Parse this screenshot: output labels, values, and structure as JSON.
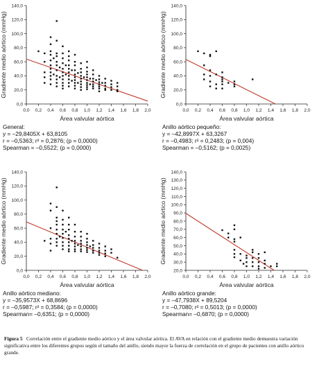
{
  "chart_data": [
    {
      "type": "scatter",
      "ylabel": "Gradiente medio aórtico (mmHg)",
      "xlabel": "Área valvular aórtica",
      "xlim": [
        0,
        2.0
      ],
      "ylim": [
        0,
        140
      ],
      "xticks": [
        "0,0",
        "0,2",
        "0,4",
        "0,6",
        "0,8",
        "1,0",
        "1,2",
        "1,4",
        "1,6",
        "1,8",
        "2,0"
      ],
      "yticks": [
        "0,0",
        "20,0",
        "40,0",
        "60,0",
        "80,0",
        "100,0",
        "120,0",
        "140,0"
      ],
      "regression": {
        "slope": -29.8405,
        "intercept": 63.8105
      },
      "stats": [
        "General:",
        "y = –29,8405X + 63,8105",
        "r = –0,5363; r² = 0,2876; (p = 0,0000)",
        "Spearman = –0,5522; (p = 0,0000)"
      ],
      "points": [
        [
          0.2,
          75
        ],
        [
          0.3,
          72
        ],
        [
          0.3,
          60
        ],
        [
          0.3,
          45
        ],
        [
          0.3,
          38
        ],
        [
          0.3,
          30
        ],
        [
          0.4,
          95
        ],
        [
          0.4,
          85
        ],
        [
          0.4,
          75
        ],
        [
          0.4,
          70
        ],
        [
          0.4,
          62
        ],
        [
          0.4,
          55
        ],
        [
          0.4,
          50
        ],
        [
          0.4,
          45
        ],
        [
          0.4,
          40
        ],
        [
          0.4,
          35
        ],
        [
          0.4,
          28
        ],
        [
          0.45,
          65
        ],
        [
          0.45,
          42
        ],
        [
          0.5,
          118
        ],
        [
          0.5,
          90
        ],
        [
          0.5,
          72
        ],
        [
          0.5,
          68
        ],
        [
          0.5,
          60
        ],
        [
          0.5,
          55
        ],
        [
          0.5,
          48
        ],
        [
          0.5,
          40
        ],
        [
          0.5,
          35
        ],
        [
          0.5,
          30
        ],
        [
          0.5,
          25
        ],
        [
          0.55,
          52
        ],
        [
          0.55,
          38
        ],
        [
          0.6,
          82
        ],
        [
          0.6,
          72
        ],
        [
          0.6,
          65
        ],
        [
          0.6,
          58
        ],
        [
          0.6,
          50
        ],
        [
          0.6,
          45
        ],
        [
          0.6,
          40
        ],
        [
          0.6,
          35
        ],
        [
          0.6,
          30
        ],
        [
          0.6,
          26
        ],
        [
          0.6,
          22
        ],
        [
          0.65,
          55
        ],
        [
          0.65,
          42
        ],
        [
          0.7,
          75
        ],
        [
          0.7,
          68
        ],
        [
          0.7,
          62
        ],
        [
          0.7,
          55
        ],
        [
          0.7,
          50
        ],
        [
          0.7,
          45
        ],
        [
          0.7,
          40
        ],
        [
          0.7,
          35
        ],
        [
          0.7,
          30
        ],
        [
          0.7,
          25
        ],
        [
          0.75,
          48
        ],
        [
          0.75,
          33
        ],
        [
          0.8,
          70
        ],
        [
          0.8,
          60
        ],
        [
          0.8,
          55
        ],
        [
          0.8,
          48
        ],
        [
          0.8,
          42
        ],
        [
          0.8,
          38
        ],
        [
          0.8,
          34
        ],
        [
          0.8,
          30
        ],
        [
          0.8,
          26
        ],
        [
          0.8,
          22
        ],
        [
          0.85,
          44
        ],
        [
          0.85,
          30
        ],
        [
          0.9,
          58
        ],
        [
          0.9,
          50
        ],
        [
          0.9,
          45
        ],
        [
          0.9,
          40
        ],
        [
          0.9,
          36
        ],
        [
          0.9,
          32
        ],
        [
          0.9,
          28
        ],
        [
          0.9,
          24
        ],
        [
          0.9,
          20
        ],
        [
          0.95,
          38
        ],
        [
          1.0,
          60
        ],
        [
          1.0,
          52
        ],
        [
          1.0,
          46
        ],
        [
          1.0,
          42
        ],
        [
          1.0,
          38
        ],
        [
          1.0,
          34
        ],
        [
          1.0,
          30
        ],
        [
          1.0,
          27
        ],
        [
          1.0,
          24
        ],
        [
          1.0,
          21
        ],
        [
          1.05,
          36
        ],
        [
          1.05,
          28
        ],
        [
          1.1,
          48
        ],
        [
          1.1,
          42
        ],
        [
          1.1,
          36
        ],
        [
          1.1,
          32
        ],
        [
          1.1,
          28
        ],
        [
          1.1,
          25
        ],
        [
          1.1,
          22
        ],
        [
          1.15,
          34
        ],
        [
          1.2,
          40
        ],
        [
          1.2,
          35
        ],
        [
          1.2,
          31
        ],
        [
          1.2,
          28
        ],
        [
          1.2,
          25
        ],
        [
          1.2,
          22
        ],
        [
          1.2,
          18
        ],
        [
          1.25,
          30
        ],
        [
          1.3,
          36
        ],
        [
          1.3,
          30
        ],
        [
          1.3,
          26
        ],
        [
          1.3,
          22
        ],
        [
          1.3,
          20
        ],
        [
          1.4,
          33
        ],
        [
          1.4,
          28
        ],
        [
          1.4,
          24
        ],
        [
          1.4,
          20
        ],
        [
          1.5,
          30
        ],
        [
          1.5,
          25
        ],
        [
          1.5,
          20
        ],
        [
          1.5,
          18
        ]
      ]
    },
    {
      "type": "scatter",
      "ylabel": "Gradiente medio aórtico (mmHg)",
      "xlabel": "Área valvular aórtica",
      "xlim": [
        0,
        2.0
      ],
      "ylim": [
        0,
        140
      ],
      "xticks": [
        "0,0",
        "0,2",
        "0,4",
        "0,6",
        "0,8",
        "1,0",
        "1,2",
        "1,4",
        "1,6",
        "1,8",
        "2,0"
      ],
      "yticks": [
        "0,0",
        "20,0",
        "40,0",
        "60,0",
        "80,0",
        "100,0",
        "120,0",
        "140,0"
      ],
      "regression": {
        "slope": -42.8997,
        "intercept": 63.3267
      },
      "stats": [
        "Anillo aórtico pequeño:",
        "y = –42,8997X + 63,3267",
        "r = –0,4983; r² = 0,2483; (p = 0,004)",
        "Spearman = –0,5162; (p = 0,0025)"
      ],
      "points": [
        [
          0.2,
          75
        ],
        [
          0.3,
          72
        ],
        [
          0.3,
          55
        ],
        [
          0.3,
          42
        ],
        [
          0.3,
          35
        ],
        [
          0.4,
          70
        ],
        [
          0.4,
          68
        ],
        [
          0.4,
          48
        ],
        [
          0.4,
          40
        ],
        [
          0.4,
          32
        ],
        [
          0.4,
          25
        ],
        [
          0.5,
          75
        ],
        [
          0.5,
          42
        ],
        [
          0.5,
          28
        ],
        [
          0.5,
          22
        ],
        [
          0.6,
          45
        ],
        [
          0.6,
          38
        ],
        [
          0.6,
          35
        ],
        [
          0.6,
          32
        ],
        [
          0.6,
          28
        ],
        [
          0.6,
          22
        ],
        [
          0.7,
          30
        ],
        [
          0.8,
          32
        ],
        [
          0.8,
          28
        ],
        [
          0.8,
          25
        ],
        [
          1.1,
          35
        ]
      ]
    },
    {
      "type": "scatter",
      "ylabel": "Gradiente medio aórtico (mmHg)",
      "xlabel": "Área valvular aórtica",
      "xlim": [
        0,
        2.0
      ],
      "ylim": [
        0,
        140
      ],
      "xticks": [
        "0,0",
        "0,2",
        "0,4",
        "0,6",
        "0,8",
        "1,0",
        "1,2",
        "1,4",
        "1,6",
        "1,8",
        "2,0"
      ],
      "yticks": [
        "0,0",
        "20,0",
        "40,0",
        "60,0",
        "80,0",
        "100,0",
        "120,0",
        "140,0"
      ],
      "regression": {
        "slope": -35.9573,
        "intercept": 68.8696
      },
      "stats": [
        "Anillo aórtico mediano:",
        "y = –35,9573X + 68,8696",
        "r = –0,5987; r² = 0,3584; (p = 0,0000)",
        "Spearman= –0,6351; (p = 0,0000)"
      ],
      "points": [
        [
          0.3,
          42
        ],
        [
          0.4,
          95
        ],
        [
          0.4,
          85
        ],
        [
          0.4,
          60
        ],
        [
          0.4,
          45
        ],
        [
          0.4,
          38
        ],
        [
          0.4,
          28
        ],
        [
          0.5,
          118
        ],
        [
          0.5,
          90
        ],
        [
          0.5,
          75
        ],
        [
          0.5,
          70
        ],
        [
          0.5,
          65
        ],
        [
          0.5,
          58
        ],
        [
          0.5,
          52
        ],
        [
          0.5,
          45
        ],
        [
          0.5,
          40
        ],
        [
          0.5,
          35
        ],
        [
          0.55,
          48
        ],
        [
          0.6,
          85
        ],
        [
          0.6,
          72
        ],
        [
          0.6,
          65
        ],
        [
          0.6,
          58
        ],
        [
          0.6,
          52
        ],
        [
          0.6,
          46
        ],
        [
          0.6,
          40
        ],
        [
          0.6,
          35
        ],
        [
          0.6,
          30
        ],
        [
          0.65,
          55
        ],
        [
          0.7,
          75
        ],
        [
          0.7,
          65
        ],
        [
          0.7,
          58
        ],
        [
          0.7,
          50
        ],
        [
          0.7,
          45
        ],
        [
          0.7,
          40
        ],
        [
          0.7,
          35
        ],
        [
          0.7,
          30
        ],
        [
          0.7,
          27
        ],
        [
          0.75,
          42
        ],
        [
          0.8,
          65
        ],
        [
          0.8,
          55
        ],
        [
          0.8,
          48
        ],
        [
          0.8,
          42
        ],
        [
          0.8,
          38
        ],
        [
          0.8,
          34
        ],
        [
          0.8,
          30
        ],
        [
          0.8,
          27
        ],
        [
          0.85,
          36
        ],
        [
          0.9,
          55
        ],
        [
          0.9,
          48
        ],
        [
          0.9,
          42
        ],
        [
          0.9,
          38
        ],
        [
          0.9,
          34
        ],
        [
          0.9,
          30
        ],
        [
          0.9,
          27
        ],
        [
          1.0,
          52
        ],
        [
          1.0,
          45
        ],
        [
          1.0,
          40
        ],
        [
          1.0,
          36
        ],
        [
          1.0,
          32
        ],
        [
          1.0,
          29
        ],
        [
          1.0,
          26
        ],
        [
          1.05,
          34
        ],
        [
          1.1,
          42
        ],
        [
          1.1,
          36
        ],
        [
          1.1,
          32
        ],
        [
          1.1,
          28
        ],
        [
          1.1,
          25
        ],
        [
          1.2,
          38
        ],
        [
          1.2,
          32
        ],
        [
          1.2,
          28
        ],
        [
          1.2,
          25
        ],
        [
          1.2,
          22
        ],
        [
          1.3,
          34
        ],
        [
          1.3,
          28
        ],
        [
          1.3,
          24
        ],
        [
          1.3,
          20
        ],
        [
          1.4,
          30
        ],
        [
          1.4,
          25
        ],
        [
          1.5,
          18
        ]
      ]
    },
    {
      "type": "scatter",
      "ylabel": "Gradiente medio aórtico (mmHg)",
      "xlabel": "Área valvular aórtica",
      "xlim": [
        0,
        2.0
      ],
      "ylim": [
        20,
        140
      ],
      "xticks": [
        "0,0",
        "0,2",
        "0,4",
        "0,6",
        "0,8",
        "1,0",
        "1,2",
        "1,4",
        "1,6",
        "1,8",
        "2,0"
      ],
      "yticks": [
        "20,0",
        "30,0",
        "40,0",
        "50,0",
        "60,0",
        "70,0",
        "80,0",
        "90,0",
        "100,0",
        "110,0",
        "120,0",
        "130,0",
        "140,0"
      ],
      "regression": {
        "slope": -47.7938,
        "intercept": 89.5204
      },
      "stats": [
        "Anillo aórtico grande:",
        "y = –47,7938X + 89,5204",
        "r = –0,7080; r² = 0,5013; (p = 0,0000)",
        "Spearman= –0,6870; (p = 0,0000)"
      ],
      "points": [
        [
          0.6,
          69
        ],
        [
          0.7,
          65
        ],
        [
          0.7,
          60
        ],
        [
          0.8,
          75
        ],
        [
          0.8,
          70
        ],
        [
          0.8,
          58
        ],
        [
          0.8,
          55
        ],
        [
          0.8,
          45
        ],
        [
          0.8,
          40
        ],
        [
          0.8,
          36
        ],
        [
          0.9,
          60
        ],
        [
          0.9,
          40
        ],
        [
          0.9,
          32
        ],
        [
          0.95,
          28
        ],
        [
          1.0,
          38
        ],
        [
          1.0,
          35
        ],
        [
          1.0,
          30
        ],
        [
          1.0,
          25
        ],
        [
          1.1,
          45
        ],
        [
          1.1,
          42
        ],
        [
          1.1,
          35
        ],
        [
          1.1,
          30
        ],
        [
          1.1,
          25
        ],
        [
          1.2,
          40
        ],
        [
          1.2,
          35
        ],
        [
          1.2,
          30
        ],
        [
          1.2,
          25
        ],
        [
          1.2,
          22
        ],
        [
          1.3,
          42
        ],
        [
          1.3,
          32
        ],
        [
          1.3,
          28
        ],
        [
          1.3,
          23
        ],
        [
          1.4,
          25
        ],
        [
          1.5,
          28
        ],
        [
          1.5,
          25
        ]
      ]
    }
  ],
  "caption": {
    "label": "Figura 5",
    "text": "Correlación entre el gradiente medio aórtico y el área valvular aórtica. El AVA en relación con el gradiente medio demuestra variación significativa entre los diferentes grupos según el tamaño del anillo, siendo mayor la fuerza de correlación en el grupo de pacientes con anillo aórtico grande."
  }
}
